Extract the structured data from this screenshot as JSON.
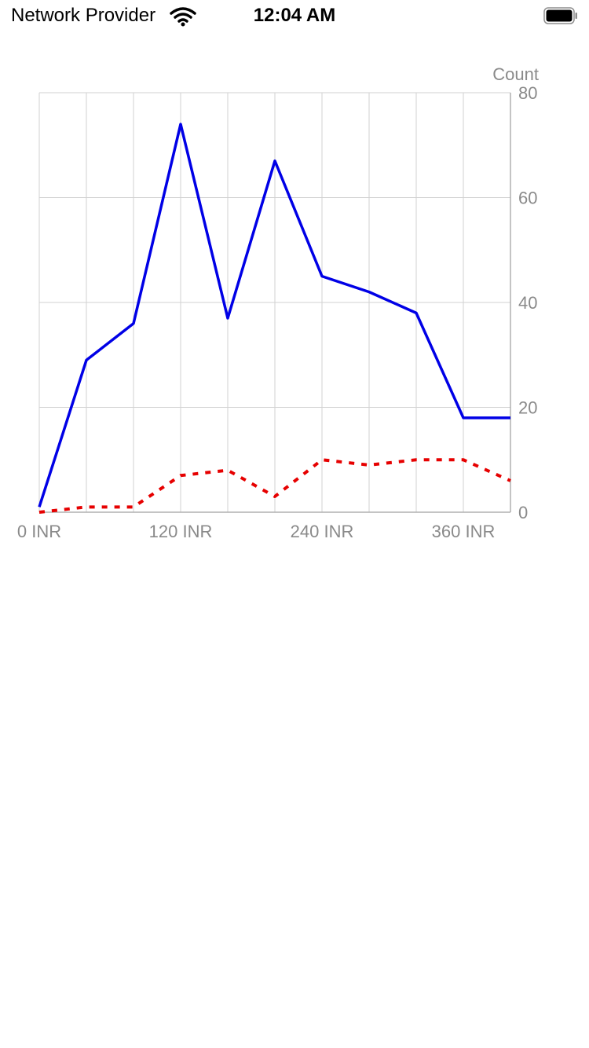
{
  "status_bar": {
    "carrier": "Network Provider",
    "time": "12:04 AM",
    "icons": [
      "wifi-icon",
      "battery-icon"
    ]
  },
  "chart_data": {
    "type": "line",
    "ylabel": "Count",
    "x": [
      0,
      40,
      80,
      120,
      160,
      200,
      240,
      280,
      320,
      360,
      400
    ],
    "xlim": [
      0,
      400
    ],
    "ylim": [
      0,
      80
    ],
    "x_ticks": [
      {
        "value": 0,
        "label": "0 INR"
      },
      {
        "value": 120,
        "label": "120 INR"
      },
      {
        "value": 240,
        "label": "240 INR"
      },
      {
        "value": 360,
        "label": "360 INR"
      }
    ],
    "y_ticks": [
      0,
      20,
      40,
      60,
      80
    ],
    "grid": true,
    "series": [
      {
        "color": "#0000e6",
        "style": "solid",
        "values": [
          1,
          29,
          36,
          74,
          37,
          67,
          45,
          42,
          38,
          18,
          18
        ]
      },
      {
        "color": "#e60000",
        "style": "dotted",
        "values": [
          0,
          1,
          1,
          7,
          8,
          3,
          10,
          9,
          10,
          10,
          6
        ]
      }
    ]
  }
}
